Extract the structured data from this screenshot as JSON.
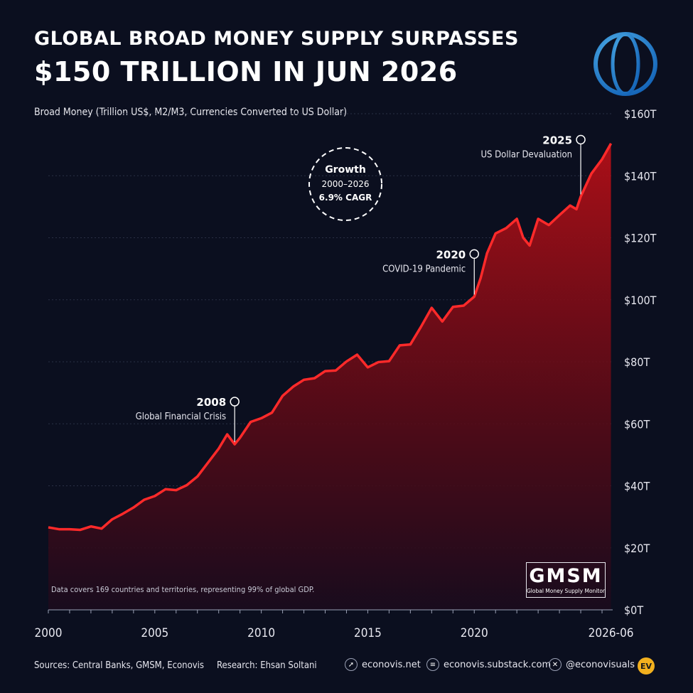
{
  "header": {
    "title_line1": "GLOBAL BROAD MONEY SUPPLY SURPASSES",
    "title_line2": "$150 TRILLION IN JUN 2026",
    "subtitle": "Broad Money (Trillion US$, M2/M3, Currencies Converted to US Dollar)"
  },
  "chart_data": {
    "type": "area",
    "xlim": [
      2000,
      2026.5
    ],
    "ylim": [
      0,
      160
    ],
    "x_ticks": [
      {
        "value": 2000,
        "label": "2000"
      },
      {
        "value": 2005,
        "label": "2005"
      },
      {
        "value": 2010,
        "label": "2010"
      },
      {
        "value": 2015,
        "label": "2015"
      },
      {
        "value": 2020,
        "label": "2020"
      },
      {
        "value": 2026.42,
        "label": "2026-06"
      }
    ],
    "y_ticks": [
      {
        "value": 0,
        "label": "$0T"
      },
      {
        "value": 20,
        "label": "$20T"
      },
      {
        "value": 40,
        "label": "$40T"
      },
      {
        "value": 60,
        "label": "$60T"
      },
      {
        "value": 80,
        "label": "$80T"
      },
      {
        "value": 100,
        "label": "$100T"
      },
      {
        "value": 120,
        "label": "$120T"
      },
      {
        "value": 140,
        "label": "$140T"
      },
      {
        "value": 160,
        "label": "$160T"
      }
    ],
    "grid": true,
    "line_color": "#ff2a2a",
    "fill_color": "#8b0c12",
    "points": [
      [
        2000.0,
        26.6
      ],
      [
        2000.5,
        26.0
      ],
      [
        2001.0,
        26.0
      ],
      [
        2001.5,
        25.8
      ],
      [
        2002.0,
        26.9
      ],
      [
        2002.5,
        26.2
      ],
      [
        2003.0,
        29.2
      ],
      [
        2003.5,
        31.0
      ],
      [
        2004.0,
        33.0
      ],
      [
        2004.5,
        35.5
      ],
      [
        2005.0,
        36.7
      ],
      [
        2005.5,
        38.9
      ],
      [
        2006.0,
        38.6
      ],
      [
        2006.5,
        40.2
      ],
      [
        2007.0,
        43.0
      ],
      [
        2007.5,
        47.5
      ],
      [
        2008.0,
        52.0
      ],
      [
        2008.4,
        56.6
      ],
      [
        2008.75,
        53.4
      ],
      [
        2009.0,
        55.5
      ],
      [
        2009.5,
        60.6
      ],
      [
        2010.0,
        61.8
      ],
      [
        2010.5,
        63.6
      ],
      [
        2011.0,
        69.0
      ],
      [
        2011.5,
        72.0
      ],
      [
        2012.0,
        74.2
      ],
      [
        2012.5,
        74.7
      ],
      [
        2013.0,
        77.0
      ],
      [
        2013.5,
        77.2
      ],
      [
        2014.0,
        80.1
      ],
      [
        2014.5,
        82.3
      ],
      [
        2015.0,
        78.2
      ],
      [
        2015.5,
        79.9
      ],
      [
        2016.0,
        80.2
      ],
      [
        2016.5,
        85.3
      ],
      [
        2017.0,
        85.6
      ],
      [
        2017.5,
        91.3
      ],
      [
        2018.0,
        97.4
      ],
      [
        2018.5,
        93.0
      ],
      [
        2019.0,
        97.7
      ],
      [
        2019.5,
        98.1
      ],
      [
        2020.0,
        101.0
      ],
      [
        2020.3,
        107.0
      ],
      [
        2020.6,
        115.0
      ],
      [
        2021.0,
        121.4
      ],
      [
        2021.5,
        123.1
      ],
      [
        2022.0,
        126.1
      ],
      [
        2022.3,
        120.0
      ],
      [
        2022.6,
        117.5
      ],
      [
        2023.0,
        126.1
      ],
      [
        2023.5,
        124.1
      ],
      [
        2024.0,
        127.3
      ],
      [
        2024.5,
        130.4
      ],
      [
        2024.8,
        129.2
      ],
      [
        2025.0,
        133.3
      ],
      [
        2025.5,
        140.7
      ],
      [
        2026.0,
        145.3
      ],
      [
        2026.42,
        150.4
      ]
    ],
    "annotations": [
      {
        "year_label": "2008",
        "text": "Global Financial Crisis",
        "x": 2008.75,
        "y": 53.4
      },
      {
        "year_label": "2020",
        "text": "COVID-19 Pandemic",
        "x": 2020.0,
        "y": 101.0
      },
      {
        "year_label": "2025",
        "text": "US Dollar Devaluation",
        "x": 2025.0,
        "y": 133.3
      }
    ],
    "growth_badge": {
      "line1": "Growth",
      "line2": "2000–2026",
      "line3": "6.9% CAGR"
    }
  },
  "notes": {
    "coverage": "Data covers 169 countries and territories, representing 99% of global GDP."
  },
  "logos": {
    "globe": "world-bank-globe-logo",
    "gmsm_big": "GMSM",
    "gmsm_small": "Global Money Supply Monitor"
  },
  "footer": {
    "sources": "Sources: Central Banks, GMSM, Econovis",
    "research": "Research: Ehsan Soltani",
    "links": [
      {
        "icon": "cursor-icon",
        "text": "econovis.net"
      },
      {
        "icon": "substack-icon",
        "text": "econovis.substack.com"
      },
      {
        "icon": "x-logo-icon",
        "text": "@econovisuals"
      }
    ],
    "badge": "EV"
  }
}
